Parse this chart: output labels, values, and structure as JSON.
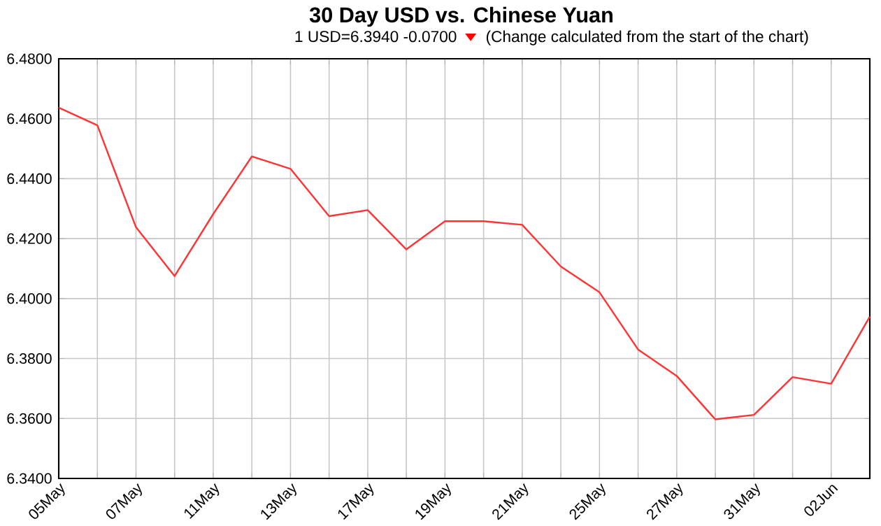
{
  "chart_data": {
    "type": "line",
    "title": "30 Day USD vs. Chinese Yuan",
    "subtitle": "1 USD=6.3940  -0.0700",
    "annotations": [
      "(Change calculated from the start of the chart)"
    ],
    "categories": [
      "05May",
      null,
      "07May",
      null,
      "11May",
      null,
      "13May",
      null,
      "17May",
      null,
      "19May",
      null,
      "21May",
      null,
      "25May",
      null,
      "27May",
      null,
      "31May",
      null,
      "02Jun",
      null
    ],
    "series": [
      {
        "color": "#ff3333",
        "values": [
          6.4637,
          6.4578,
          6.4238,
          6.4075,
          6.4282,
          6.4474,
          6.4433,
          6.4275,
          6.4295,
          6.4164,
          6.4258,
          6.4258,
          6.4246,
          6.4107,
          6.4021,
          6.383,
          6.3742,
          6.3597,
          6.3612,
          6.3738,
          6.3716,
          6.394
        ]
      }
    ],
    "ylim": [
      6.34,
      6.48
    ],
    "yticks": [
      {
        "value": 6.34,
        "label": "6.3400"
      },
      {
        "value": 6.36,
        "label": "6.3600"
      },
      {
        "value": 6.38,
        "label": "6.3800"
      },
      {
        "value": 6.4,
        "label": "6.4000"
      },
      {
        "value": 6.42,
        "label": "6.4200"
      },
      {
        "value": 6.44,
        "label": "6.4400"
      },
      {
        "value": 6.46,
        "label": "6.4600"
      },
      {
        "value": 6.48,
        "label": "6.4800"
      }
    ],
    "grid": true,
    "marker": "none",
    "line_style": "solid"
  }
}
